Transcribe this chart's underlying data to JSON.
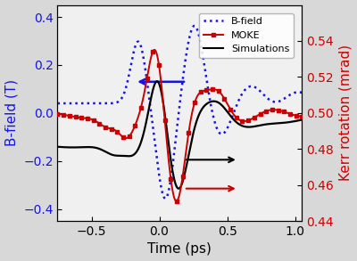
{
  "xlabel": "Time (ps)",
  "ylabel_left": "B-field (T)",
  "ylabel_right": "Kerr rotation (mrad)",
  "xlim": [
    -0.75,
    1.05
  ],
  "ylim_left": [
    -0.45,
    0.45
  ],
  "ylim_right": [
    0.44,
    0.56
  ],
  "xticks": [
    -0.5,
    0.0,
    0.5,
    1.0
  ],
  "yticks_left": [
    -0.4,
    -0.2,
    0.0,
    0.2,
    0.4
  ],
  "yticks_right": [
    0.44,
    0.46,
    0.48,
    0.5,
    0.52,
    0.54
  ],
  "bg_color": "#d8d8d8",
  "plot_bg_color": "#f0f0f0",
  "blue_color": "#1515dd",
  "red_color": "#cc0000",
  "black_color": "#000000",
  "figsize": [
    4.0,
    2.93
  ],
  "dpi": 100
}
